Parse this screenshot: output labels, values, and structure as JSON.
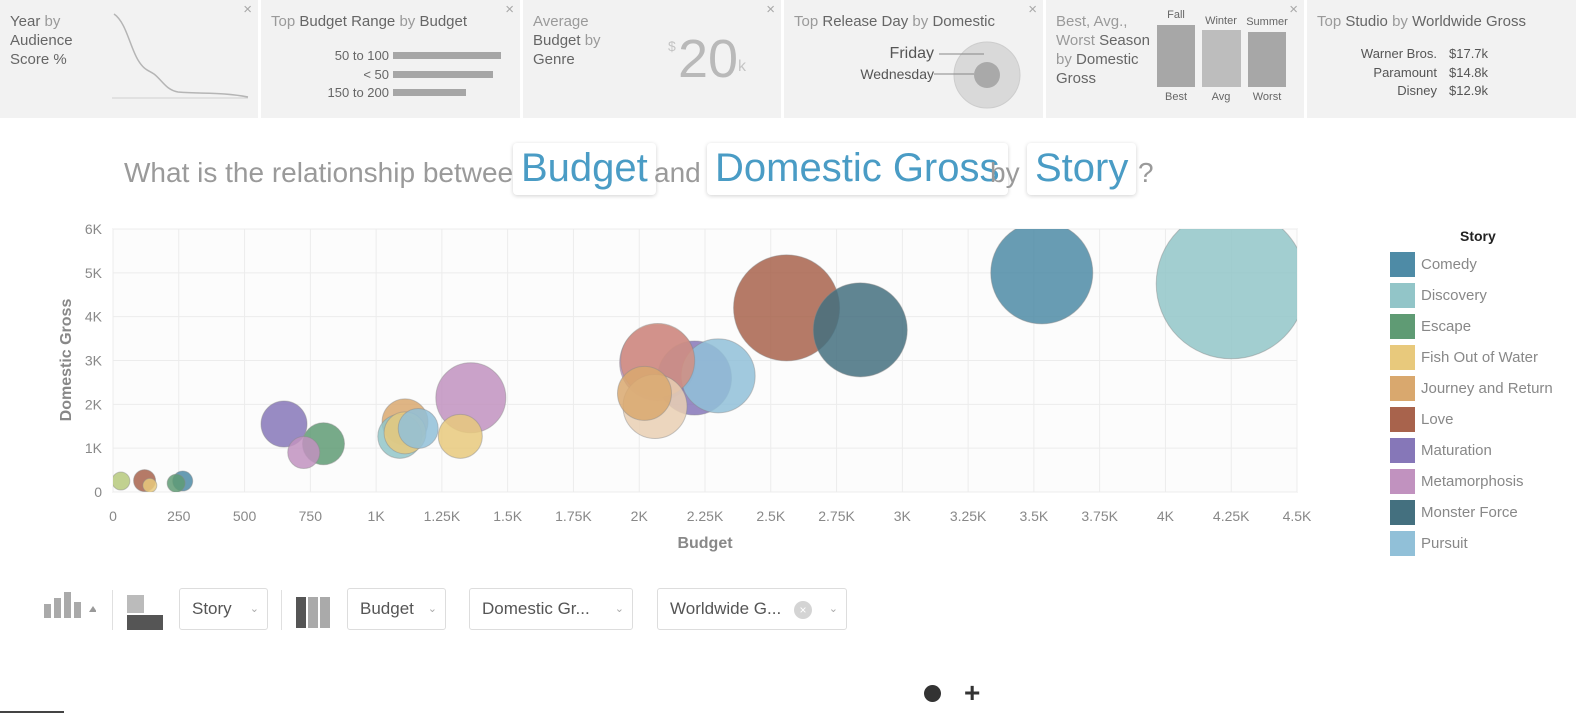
{
  "cards": {
    "year": {
      "title_parts": [
        "Year",
        " by ",
        "Audience Score %"
      ]
    },
    "budget_range": {
      "title_parts": [
        "Top ",
        "Budget Range",
        " by ",
        "Budget"
      ],
      "rows": [
        {
          "label": "50 to 100",
          "value": 1.0
        },
        {
          "label": "< 50",
          "value": 0.93
        },
        {
          "label": "150 to 200",
          "value": 0.68
        }
      ]
    },
    "avg_budget": {
      "title_parts": [
        "Average ",
        "Budget",
        " by ",
        "Genre"
      ],
      "currency": "$",
      "value": "20",
      "unit": "k"
    },
    "release_day": {
      "title_parts": [
        "Top ",
        "Release Day",
        " by ",
        "Domestic"
      ],
      "days": [
        "Friday",
        "Wednesday"
      ]
    },
    "season": {
      "title_parts": [
        "Best, Avg., Worst ",
        "Season",
        " by ",
        "Domestic Gross"
      ],
      "bars": [
        {
          "top": "Fall",
          "bottom": "Best",
          "value": 1.0
        },
        {
          "top": "Winter",
          "bottom": "Avg",
          "value": 0.92
        },
        {
          "top": "Summer",
          "bottom": "Worst",
          "value": 0.89
        }
      ]
    },
    "studio": {
      "title_parts": [
        "Top ",
        "Studio",
        " by ",
        "Worldwide Gross"
      ],
      "rows": [
        {
          "name": "Warner Bros.",
          "value": "$17.7k"
        },
        {
          "name": "Paramount",
          "value": "$14.8k"
        },
        {
          "name": "Disney",
          "value": "$12.9k"
        }
      ]
    },
    "close_glyph": "×"
  },
  "question": {
    "prefix": "What is the relationship between",
    "x_field": "Budget",
    "and": "and",
    "y_field": "Domestic Gross",
    "by": "by",
    "group_field": "Story",
    "suffix": "?"
  },
  "chart_data": {
    "type": "scatter",
    "subtype": "bubble",
    "xlabel": "Budget",
    "ylabel": "Domestic Gross",
    "xlim": [
      0,
      4500
    ],
    "ylim": [
      0,
      6000
    ],
    "xticks": [
      0,
      250,
      500,
      750,
      1000,
      1250,
      1500,
      1750,
      2000,
      2250,
      2500,
      2750,
      3000,
      3250,
      3500,
      3750,
      4000,
      4250,
      4500
    ],
    "xtick_labels": [
      "0",
      "250",
      "500",
      "750",
      "1K",
      "1.25K",
      "1.5K",
      "1.75K",
      "2K",
      "2.25K",
      "2.5K",
      "2.75K",
      "3K",
      "3.25K",
      "3.5K",
      "3.75K",
      "4K",
      "4.25K",
      "4.5K"
    ],
    "yticks": [
      0,
      1000,
      2000,
      3000,
      4000,
      5000,
      6000
    ],
    "ytick_labels": [
      "0",
      "1K",
      "2K",
      "3K",
      "4K",
      "5K",
      "6K"
    ],
    "grid": true,
    "legend_title": "Story",
    "legend_position": "right",
    "series": [
      {
        "name": "Comedy",
        "color": "#4e8ba6",
        "points": [
          {
            "x": 265,
            "y": 250,
            "size": 10
          },
          {
            "x": 3530,
            "y": 5000,
            "size": 51
          }
        ]
      },
      {
        "name": "Discovery",
        "color": "#92c5c8",
        "points": [
          {
            "x": 1090,
            "y": 1270,
            "size": 22
          },
          {
            "x": 4250,
            "y": 4750,
            "size": 75
          }
        ]
      },
      {
        "name": "Escape",
        "color": "#5f9b74",
        "points": [
          {
            "x": 240,
            "y": 200,
            "size": 9
          },
          {
            "x": 800,
            "y": 1100,
            "size": 21
          }
        ]
      },
      {
        "name": "Fish Out of Water",
        "color": "#e8c97c",
        "points": [
          {
            "x": 140,
            "y": 150,
            "size": 7
          },
          {
            "x": 1110,
            "y": 1350,
            "size": 21
          },
          {
            "x": 1320,
            "y": 1270,
            "size": 22
          }
        ]
      },
      {
        "name": "Journey and Return",
        "color": "#d9a86e",
        "points": [
          {
            "x": 2020,
            "y": 2250,
            "size": 27
          },
          {
            "x": 1110,
            "y": 1600,
            "size": 23
          }
        ]
      },
      {
        "name": "Love",
        "color": "#a8634c",
        "points": [
          {
            "x": 120,
            "y": 260,
            "size": 11
          },
          {
            "x": 2560,
            "y": 4200,
            "size": 53
          }
        ]
      },
      {
        "name": "Maturation",
        "color": "#8677b8",
        "points": [
          {
            "x": 650,
            "y": 1550,
            "size": 23
          },
          {
            "x": 2210,
            "y": 2600,
            "size": 37
          }
        ]
      },
      {
        "name": "Metamorphosis",
        "color": "#c192bf",
        "points": [
          {
            "x": 725,
            "y": 900,
            "size": 16
          },
          {
            "x": 1360,
            "y": 2150,
            "size": 35
          },
          {
            "x": 2070,
            "y": 2950,
            "size": 38
          }
        ]
      },
      {
        "name": "Monster Force",
        "color": "#44707f",
        "points": [
          {
            "x": 2840,
            "y": 3700,
            "size": 47
          }
        ]
      },
      {
        "name": "Pursuit",
        "color": "#91c0d8",
        "points": [
          {
            "x": 2300,
            "y": 2650,
            "size": 37
          },
          {
            "x": 1160,
            "y": 1450,
            "size": 20
          }
        ]
      },
      {
        "name": "",
        "color": "#b6c97d",
        "points": [
          {
            "x": 30,
            "y": 250,
            "size": 9
          }
        ]
      },
      {
        "name": "",
        "color": "#e9cfb3",
        "points": [
          {
            "x": 2060,
            "y": 1950,
            "size": 32
          }
        ]
      },
      {
        "name": "",
        "color": "#d48f80",
        "points": [
          {
            "x": 2070,
            "y": 3000,
            "size": 37
          }
        ]
      }
    ]
  },
  "toolbar": {
    "group_value": "Story",
    "x_value": "Budget",
    "y_value": "Domestic Gr...",
    "size_value": "Worldwide G...",
    "chevron": "⌄",
    "clear": "×"
  },
  "footer": {
    "plus": "+"
  }
}
